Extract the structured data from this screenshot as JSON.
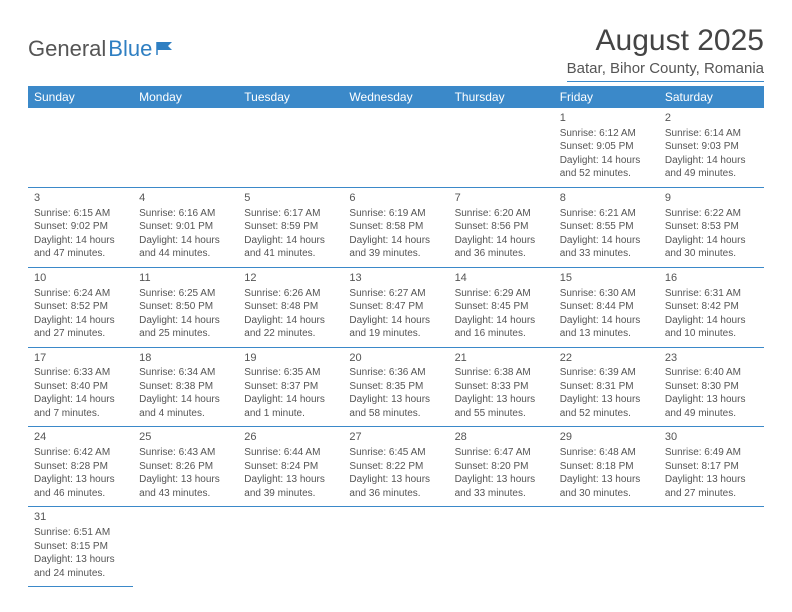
{
  "logo": {
    "general": "General",
    "blue": "Blue"
  },
  "title": "August 2025",
  "location": "Batar, Bihor County, Romania",
  "colors": {
    "header_bg": "#3b89c9",
    "header_text": "#ffffff",
    "border": "#3b89c9",
    "text": "#555555",
    "logo_gray": "#555555",
    "logo_blue": "#2f7fc2",
    "background": "#ffffff"
  },
  "weekdays": [
    "Sunday",
    "Monday",
    "Tuesday",
    "Wednesday",
    "Thursday",
    "Friday",
    "Saturday"
  ],
  "weeks": [
    [
      null,
      null,
      null,
      null,
      null,
      {
        "n": "1",
        "sr": "Sunrise: 6:12 AM",
        "ss": "Sunset: 9:05 PM",
        "dl": "Daylight: 14 hours and 52 minutes."
      },
      {
        "n": "2",
        "sr": "Sunrise: 6:14 AM",
        "ss": "Sunset: 9:03 PM",
        "dl": "Daylight: 14 hours and 49 minutes."
      }
    ],
    [
      {
        "n": "3",
        "sr": "Sunrise: 6:15 AM",
        "ss": "Sunset: 9:02 PM",
        "dl": "Daylight: 14 hours and 47 minutes."
      },
      {
        "n": "4",
        "sr": "Sunrise: 6:16 AM",
        "ss": "Sunset: 9:01 PM",
        "dl": "Daylight: 14 hours and 44 minutes."
      },
      {
        "n": "5",
        "sr": "Sunrise: 6:17 AM",
        "ss": "Sunset: 8:59 PM",
        "dl": "Daylight: 14 hours and 41 minutes."
      },
      {
        "n": "6",
        "sr": "Sunrise: 6:19 AM",
        "ss": "Sunset: 8:58 PM",
        "dl": "Daylight: 14 hours and 39 minutes."
      },
      {
        "n": "7",
        "sr": "Sunrise: 6:20 AM",
        "ss": "Sunset: 8:56 PM",
        "dl": "Daylight: 14 hours and 36 minutes."
      },
      {
        "n": "8",
        "sr": "Sunrise: 6:21 AM",
        "ss": "Sunset: 8:55 PM",
        "dl": "Daylight: 14 hours and 33 minutes."
      },
      {
        "n": "9",
        "sr": "Sunrise: 6:22 AM",
        "ss": "Sunset: 8:53 PM",
        "dl": "Daylight: 14 hours and 30 minutes."
      }
    ],
    [
      {
        "n": "10",
        "sr": "Sunrise: 6:24 AM",
        "ss": "Sunset: 8:52 PM",
        "dl": "Daylight: 14 hours and 27 minutes."
      },
      {
        "n": "11",
        "sr": "Sunrise: 6:25 AM",
        "ss": "Sunset: 8:50 PM",
        "dl": "Daylight: 14 hours and 25 minutes."
      },
      {
        "n": "12",
        "sr": "Sunrise: 6:26 AM",
        "ss": "Sunset: 8:48 PM",
        "dl": "Daylight: 14 hours and 22 minutes."
      },
      {
        "n": "13",
        "sr": "Sunrise: 6:27 AM",
        "ss": "Sunset: 8:47 PM",
        "dl": "Daylight: 14 hours and 19 minutes."
      },
      {
        "n": "14",
        "sr": "Sunrise: 6:29 AM",
        "ss": "Sunset: 8:45 PM",
        "dl": "Daylight: 14 hours and 16 minutes."
      },
      {
        "n": "15",
        "sr": "Sunrise: 6:30 AM",
        "ss": "Sunset: 8:44 PM",
        "dl": "Daylight: 14 hours and 13 minutes."
      },
      {
        "n": "16",
        "sr": "Sunrise: 6:31 AM",
        "ss": "Sunset: 8:42 PM",
        "dl": "Daylight: 14 hours and 10 minutes."
      }
    ],
    [
      {
        "n": "17",
        "sr": "Sunrise: 6:33 AM",
        "ss": "Sunset: 8:40 PM",
        "dl": "Daylight: 14 hours and 7 minutes."
      },
      {
        "n": "18",
        "sr": "Sunrise: 6:34 AM",
        "ss": "Sunset: 8:38 PM",
        "dl": "Daylight: 14 hours and 4 minutes."
      },
      {
        "n": "19",
        "sr": "Sunrise: 6:35 AM",
        "ss": "Sunset: 8:37 PM",
        "dl": "Daylight: 14 hours and 1 minute."
      },
      {
        "n": "20",
        "sr": "Sunrise: 6:36 AM",
        "ss": "Sunset: 8:35 PM",
        "dl": "Daylight: 13 hours and 58 minutes."
      },
      {
        "n": "21",
        "sr": "Sunrise: 6:38 AM",
        "ss": "Sunset: 8:33 PM",
        "dl": "Daylight: 13 hours and 55 minutes."
      },
      {
        "n": "22",
        "sr": "Sunrise: 6:39 AM",
        "ss": "Sunset: 8:31 PM",
        "dl": "Daylight: 13 hours and 52 minutes."
      },
      {
        "n": "23",
        "sr": "Sunrise: 6:40 AM",
        "ss": "Sunset: 8:30 PM",
        "dl": "Daylight: 13 hours and 49 minutes."
      }
    ],
    [
      {
        "n": "24",
        "sr": "Sunrise: 6:42 AM",
        "ss": "Sunset: 8:28 PM",
        "dl": "Daylight: 13 hours and 46 minutes."
      },
      {
        "n": "25",
        "sr": "Sunrise: 6:43 AM",
        "ss": "Sunset: 8:26 PM",
        "dl": "Daylight: 13 hours and 43 minutes."
      },
      {
        "n": "26",
        "sr": "Sunrise: 6:44 AM",
        "ss": "Sunset: 8:24 PM",
        "dl": "Daylight: 13 hours and 39 minutes."
      },
      {
        "n": "27",
        "sr": "Sunrise: 6:45 AM",
        "ss": "Sunset: 8:22 PM",
        "dl": "Daylight: 13 hours and 36 minutes."
      },
      {
        "n": "28",
        "sr": "Sunrise: 6:47 AM",
        "ss": "Sunset: 8:20 PM",
        "dl": "Daylight: 13 hours and 33 minutes."
      },
      {
        "n": "29",
        "sr": "Sunrise: 6:48 AM",
        "ss": "Sunset: 8:18 PM",
        "dl": "Daylight: 13 hours and 30 minutes."
      },
      {
        "n": "30",
        "sr": "Sunrise: 6:49 AM",
        "ss": "Sunset: 8:17 PM",
        "dl": "Daylight: 13 hours and 27 minutes."
      }
    ],
    [
      {
        "n": "31",
        "sr": "Sunrise: 6:51 AM",
        "ss": "Sunset: 8:15 PM",
        "dl": "Daylight: 13 hours and 24 minutes."
      },
      null,
      null,
      null,
      null,
      null,
      null
    ]
  ]
}
